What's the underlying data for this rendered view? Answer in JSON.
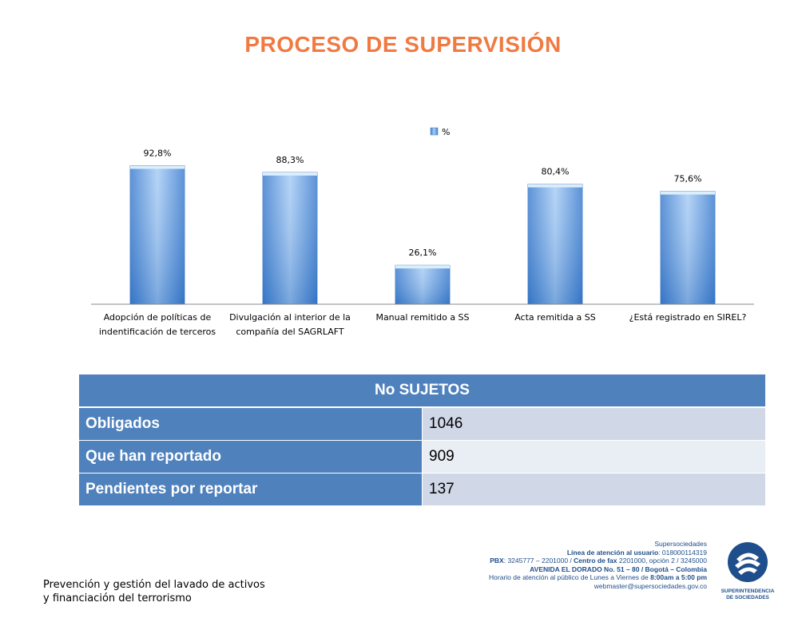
{
  "title": "PROCESO DE SUPERVISIÓN",
  "chart_data": {
    "type": "bar",
    "categories": [
      [
        "Adopción de políticas de",
        "indentificación de terceros"
      ],
      [
        "Divulgación al interior de la",
        "compañía del SAGRLAFT"
      ],
      [
        "Manual remitido a SS"
      ],
      [
        "Acta remitida a SS"
      ],
      [
        "¿Está registrado en SIREL?"
      ]
    ],
    "series": [
      {
        "name": "%",
        "values": [
          92.8,
          88.3,
          26.1,
          80.4,
          75.6
        ],
        "labels": [
          "92,8%",
          "88,3%",
          "26,1%",
          "80,4%",
          "75,6%"
        ]
      }
    ],
    "ylim": [
      0,
      100
    ],
    "legend": "top",
    "grid": false,
    "bar_color": "#5b9bd5"
  },
  "table": {
    "header": "No SUJETOS",
    "rows": [
      {
        "label": "Obligados",
        "value": "1046"
      },
      {
        "label": "Que han reportado",
        "value": "909"
      },
      {
        "label": "Pendientes por reportar",
        "value": "137"
      }
    ]
  },
  "footer": {
    "left_lines": [
      "Prevención y gestión del lavado de activos",
      "y financiación del terrorismo"
    ],
    "org": "Supersociedades",
    "line_atencion_label": "Línea de atención al usuario",
    "line_atencion_value": ": 018000114319",
    "pbx_label": "PBX",
    "pbx_value": ": 3245777 – 2201000 / ",
    "fax_label": "Centro de fax",
    "fax_value": " 2201000, opción 2 / 3245000",
    "address": "AVENIDA EL DORADO No. 51 – 80 / Bogotá – Colombia",
    "horario_prefix": "Horario de atención al público de Lunes a Viernes de ",
    "horario_time": "8:00am a 5:00 pm",
    "email": "webmaster@supersociedades.gov.co",
    "logo_lines": [
      "SUPERINTENDENCIA",
      "DE SOCIEDADES"
    ]
  }
}
